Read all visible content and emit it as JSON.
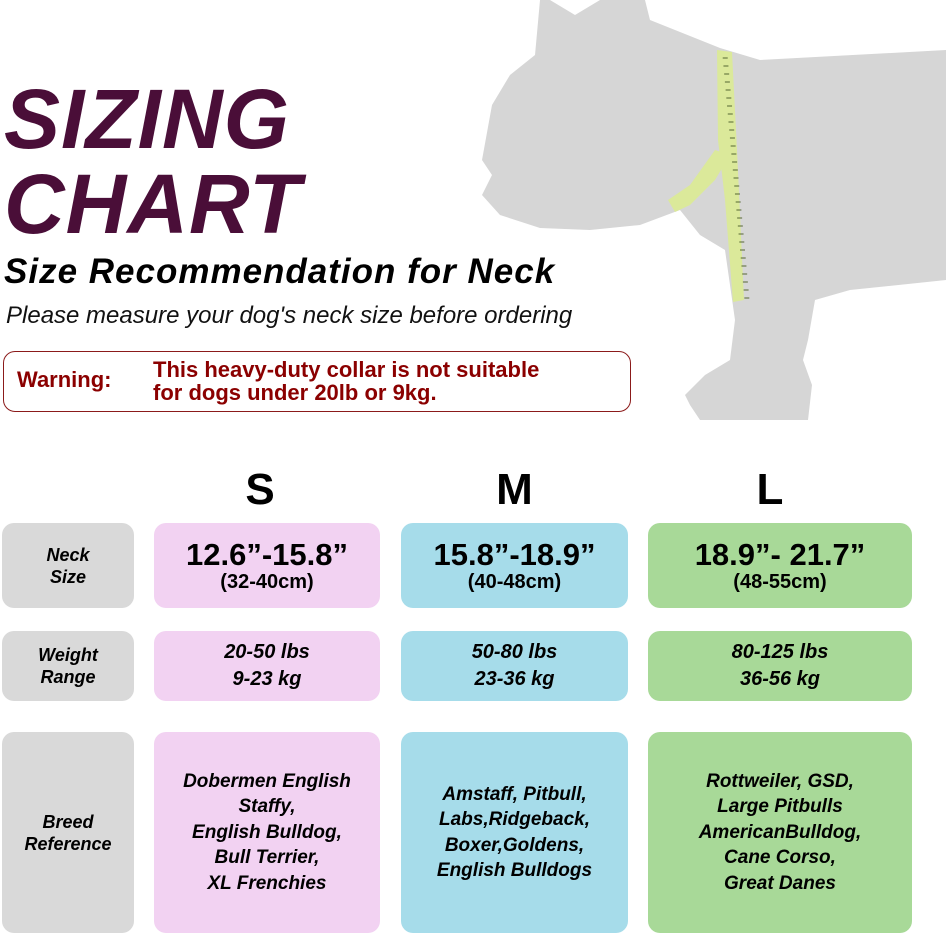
{
  "title": {
    "line1": "SIZING",
    "line2": "CHART"
  },
  "subtitle": "Size Recommendation for Neck",
  "instruction": "Please measure your dog's neck size before ordering",
  "warning": {
    "label": "Warning:",
    "line1": "This heavy-duty collar is not suitable",
    "line2": "for dogs under 20lb or 9kg."
  },
  "colors": {
    "title": "#4a0e38",
    "warning": "#8b0000",
    "small": "#f2d2f2",
    "medium": "#a6dcea",
    "large": "#a8d998",
    "label": "#d9d9d9",
    "silhouette": "#d6d6d6",
    "tape": "#dbe99a"
  },
  "illustration": {
    "icon": "dog-silhouette-with-measuring-tape"
  },
  "sizes": [
    "S",
    "M",
    "L"
  ],
  "rows": {
    "neck": {
      "label1": "Neck",
      "label2": "Size",
      "values": [
        {
          "inch": "12.6”-15.8”",
          "cm": "(32-40cm)"
        },
        {
          "inch": "15.8”-18.9”",
          "cm": "(40-48cm)"
        },
        {
          "inch": "18.9”- 21.7”",
          "cm": "(48-55cm)"
        }
      ]
    },
    "weight": {
      "label1": "Weight",
      "label2": "Range",
      "values": [
        {
          "lbs": "20-50 lbs",
          "kg": "9-23 kg"
        },
        {
          "lbs": "50-80 lbs",
          "kg": "23-36 kg"
        },
        {
          "lbs": "80-125 lbs",
          "kg": "36-56 kg"
        }
      ]
    },
    "breed": {
      "label1": "Breed",
      "label2": "Reference",
      "values": [
        [
          "Dobermen English",
          "Staffy,",
          "English Bulldog,",
          "Bull Terrier,",
          "XL Frenchies"
        ],
        [
          "Amstaff, Pitbull,",
          "Labs,Ridgeback,",
          "Boxer,Goldens,",
          "English Bulldogs"
        ],
        [
          "Rottweiler, GSD,",
          "Large Pitbulls",
          "AmericanBulldog,",
          "Cane Corso,",
          "Great Danes"
        ]
      ]
    }
  }
}
